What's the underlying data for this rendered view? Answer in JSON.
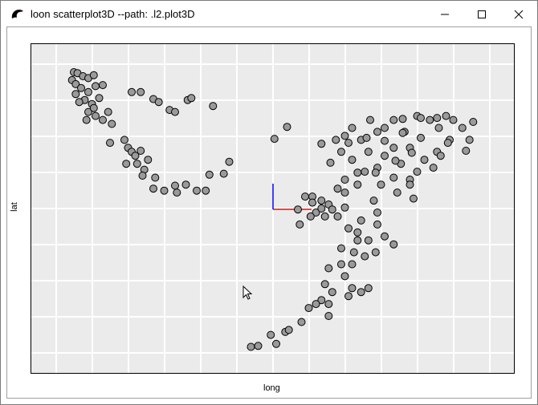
{
  "window": {
    "title": "loon scatterplot3D --path: .l2.plot3D",
    "icon": "loon-bird-icon",
    "buttons": [
      "minimize-icon",
      "maximize-icon",
      "close-icon"
    ]
  },
  "colors": {
    "background": "#ebebeb",
    "grid": "#ffffff",
    "point_fill": "#9a9a9a",
    "point_stroke": "#000000",
    "axis3d_x": "#ff0000",
    "axis3d_y": "#0000ff"
  },
  "chart_data": {
    "type": "scatter",
    "xlabel": "long",
    "ylabel": "lat",
    "xlim": [
      163.4,
      190.2
    ],
    "ylim": [
      -41.2,
      -8.0
    ],
    "grid": true,
    "points": [
      [
        165.8,
        -10.9
      ],
      [
        166.0,
        -11.0
      ],
      [
        166.3,
        -11.3
      ],
      [
        165.7,
        -11.7
      ],
      [
        165.9,
        -12.1
      ],
      [
        166.6,
        -11.5
      ],
      [
        166.9,
        -11.2
      ],
      [
        166.2,
        -12.5
      ],
      [
        166.6,
        -12.9
      ],
      [
        165.9,
        -13.1
      ],
      [
        167.0,
        -12.3
      ],
      [
        166.4,
        -13.7
      ],
      [
        166.8,
        -14.1
      ],
      [
        167.2,
        -13.5
      ],
      [
        166.6,
        -14.9
      ],
      [
        167.0,
        -15.3
      ],
      [
        167.4,
        -15.7
      ],
      [
        167.9,
        -16.1
      ],
      [
        167.4,
        -12.2
      ],
      [
        166.1,
        -13.9
      ],
      [
        166.9,
        -14.5
      ],
      [
        167.7,
        -14.9
      ],
      [
        166.5,
        -15.7
      ],
      [
        167.8,
        -18.0
      ],
      [
        168.6,
        -17.7
      ],
      [
        168.8,
        -18.5
      ],
      [
        169.0,
        -18.9
      ],
      [
        169.2,
        -19.3
      ],
      [
        169.5,
        -18.8
      ],
      [
        168.7,
        -20.1
      ],
      [
        169.3,
        -20.1
      ],
      [
        169.7,
        -20.7
      ],
      [
        169.9,
        -19.7
      ],
      [
        169.6,
        -21.3
      ],
      [
        170.3,
        -21.5
      ],
      [
        170.2,
        -22.6
      ],
      [
        170.8,
        -22.8
      ],
      [
        171.4,
        -22.3
      ],
      [
        171.5,
        -23.0
      ],
      [
        172.6,
        -22.8
      ],
      [
        173.1,
        -22.8
      ],
      [
        172.0,
        -22.2
      ],
      [
        169.0,
        -12.9
      ],
      [
        169.5,
        -12.9
      ],
      [
        170.2,
        -13.6
      ],
      [
        170.5,
        -13.9
      ],
      [
        171.1,
        -14.7
      ],
      [
        172.1,
        -13.7
      ],
      [
        172.3,
        -13.5
      ],
      [
        173.5,
        -14.3
      ],
      [
        171.4,
        -14.9
      ],
      [
        173.3,
        -21.2
      ],
      [
        174.1,
        -21.1
      ],
      [
        174.4,
        -19.9
      ],
      [
        176.9,
        -17.6
      ],
      [
        177.6,
        -16.4
      ],
      [
        179.5,
        -18.1
      ],
      [
        180.3,
        -17.7
      ],
      [
        180.6,
        -18.9
      ],
      [
        180.8,
        -17.3
      ],
      [
        181.2,
        -16.5
      ],
      [
        181.7,
        -17.7
      ],
      [
        182.2,
        -15.7
      ],
      [
        182.6,
        -16.9
      ],
      [
        183.0,
        -16.5
      ],
      [
        183.5,
        -15.7
      ],
      [
        184.1,
        -16.9
      ],
      [
        184.8,
        -15.3
      ],
      [
        185.5,
        -15.7
      ],
      [
        185.9,
        -15.5
      ],
      [
        186.4,
        -15.3
      ],
      [
        186.8,
        -15.7
      ],
      [
        187.3,
        -16.5
      ],
      [
        187.9,
        -15.9
      ],
      [
        187.7,
        -17.7
      ],
      [
        186.6,
        -17.7
      ],
      [
        185.9,
        -18.9
      ],
      [
        185.2,
        -19.7
      ],
      [
        184.8,
        -20.9
      ],
      [
        184.4,
        -21.7
      ],
      [
        183.7,
        -23.0
      ],
      [
        183.9,
        -20.1
      ],
      [
        183.0,
        -19.3
      ],
      [
        182.6,
        -20.5
      ],
      [
        181.9,
        -20.9
      ],
      [
        181.5,
        -22.2
      ],
      [
        180.8,
        -23.0
      ],
      [
        180.4,
        -22.6
      ],
      [
        179.9,
        -24.2
      ],
      [
        179.5,
        -23.8
      ],
      [
        179.0,
        -23.4
      ],
      [
        179.2,
        -25.0
      ],
      [
        179.7,
        -25.4
      ],
      [
        180.1,
        -24.7
      ],
      [
        178.6,
        -23.4
      ],
      [
        178.2,
        -24.7
      ],
      [
        178.3,
        -26.2
      ],
      [
        178.9,
        -25.4
      ],
      [
        180.8,
        -21.7
      ],
      [
        181.2,
        -19.7
      ],
      [
        182.1,
        -18.9
      ],
      [
        183.5,
        -18.5
      ],
      [
        184.4,
        -18.5
      ],
      [
        182.8,
        -22.2
      ],
      [
        182.4,
        -23.8
      ],
      [
        182.6,
        -26.2
      ],
      [
        182.1,
        -27.8
      ],
      [
        181.5,
        -27.8
      ],
      [
        183.0,
        -27.4
      ],
      [
        183.5,
        -28.2
      ],
      [
        181.9,
        -29.4
      ],
      [
        181.2,
        -30.2
      ],
      [
        180.6,
        -30.2
      ],
      [
        180.8,
        -31.4
      ],
      [
        179.9,
        -30.6
      ],
      [
        179.7,
        -32.2
      ],
      [
        180.1,
        -33.0
      ],
      [
        179.5,
        -33.8
      ],
      [
        179.2,
        -34.2
      ],
      [
        178.8,
        -34.6
      ],
      [
        179.9,
        -35.4
      ],
      [
        181.2,
        -32.6
      ],
      [
        181.7,
        -33.0
      ],
      [
        182.1,
        -32.6
      ],
      [
        181.0,
        -33.4
      ],
      [
        179.9,
        -34.2
      ],
      [
        178.4,
        -36.0
      ],
      [
        177.5,
        -37.0
      ],
      [
        177.0,
        -38.2
      ],
      [
        177.7,
        -36.8
      ],
      [
        176.0,
        -38.4
      ],
      [
        175.6,
        -38.5
      ],
      [
        176.7,
        -37.3
      ],
      [
        180.4,
        -25.4
      ],
      [
        181.0,
        -26.6
      ],
      [
        181.5,
        -27.0
      ],
      [
        180.6,
        -28.6
      ],
      [
        181.7,
        -25.8
      ],
      [
        182.6,
        -25.0
      ],
      [
        184.6,
        -23.6
      ],
      [
        184.4,
        -22.2
      ],
      [
        185.7,
        -20.5
      ],
      [
        186.1,
        -19.3
      ],
      [
        187.5,
        -18.8
      ],
      [
        181.0,
        -18.0
      ],
      [
        182.0,
        -17.5
      ],
      [
        183.0,
        -17.8
      ],
      [
        184.0,
        -17.0
      ],
      [
        185.0,
        -17.5
      ],
      [
        186.0,
        -16.5
      ],
      [
        184.5,
        -19.0
      ],
      [
        182.5,
        -21.0
      ],
      [
        181.5,
        -21.0
      ],
      [
        183.5,
        -21.5
      ],
      [
        180.0,
        -20.0
      ],
      [
        179.0,
        -24.0
      ],
      [
        179.5,
        -24.6
      ],
      [
        180.8,
        -24.5
      ],
      [
        181.3,
        -29.0
      ],
      [
        182.5,
        -29.0
      ],
      [
        186.5,
        -18.0
      ],
      [
        185.0,
        -15.5
      ],
      [
        184.0,
        -15.6
      ],
      [
        183.6,
        -19.8
      ]
    ]
  }
}
